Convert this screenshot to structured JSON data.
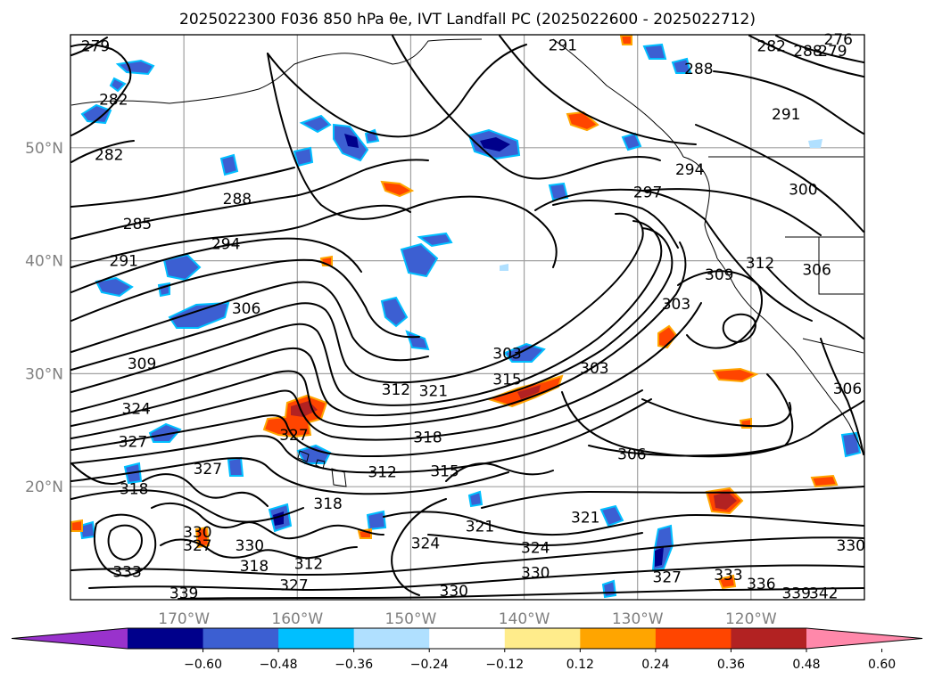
{
  "title": "2025022300 F036 850 hPa θe, IVT Landfall PC (2025022600 - 2025022712)",
  "map": {
    "lon_range": [
      -180,
      -110
    ],
    "lat_range": [
      10,
      60
    ],
    "lon_ticks": [
      -170,
      -160,
      -150,
      -140,
      -130,
      -120
    ],
    "lon_tick_labels": [
      "170°W",
      "160°W",
      "150°W",
      "140°W",
      "130°W",
      "120°W"
    ],
    "lat_ticks": [
      20,
      30,
      40,
      50
    ],
    "lat_tick_labels": [
      "20°N",
      "30°N",
      "40°N",
      "50°N"
    ],
    "grid": true,
    "contour_labels": [
      {
        "text": "279",
        "lon": -177.8,
        "lat": 59.0
      },
      {
        "text": "282",
        "lon": -176.2,
        "lat": 54.3
      },
      {
        "text": "282",
        "lon": -176.6,
        "lat": 49.4
      },
      {
        "text": "285",
        "lon": -174.1,
        "lat": 43.3
      },
      {
        "text": "288",
        "lon": -165.3,
        "lat": 45.5
      },
      {
        "text": "291",
        "lon": -175.3,
        "lat": 40.0
      },
      {
        "text": "294",
        "lon": -166.3,
        "lat": 41.5
      },
      {
        "text": "306",
        "lon": -164.5,
        "lat": 35.8
      },
      {
        "text": "309",
        "lon": -173.7,
        "lat": 30.9
      },
      {
        "text": "324",
        "lon": -174.2,
        "lat": 26.9
      },
      {
        "text": "327",
        "lon": -174.5,
        "lat": 24.0
      },
      {
        "text": "327",
        "lon": -167.9,
        "lat": 21.6
      },
      {
        "text": "327",
        "lon": -160.3,
        "lat": 24.6
      },
      {
        "text": "318",
        "lon": -174.4,
        "lat": 19.8
      },
      {
        "text": "330",
        "lon": -168.8,
        "lat": 16.0
      },
      {
        "text": "327",
        "lon": -168.8,
        "lat": 14.8
      },
      {
        "text": "330",
        "lon": -164.2,
        "lat": 14.8
      },
      {
        "text": "318",
        "lon": -163.8,
        "lat": 13.0
      },
      {
        "text": "312",
        "lon": -159.0,
        "lat": 13.2
      },
      {
        "text": "318",
        "lon": -157.3,
        "lat": 18.5
      },
      {
        "text": "312",
        "lon": -152.5,
        "lat": 21.3
      },
      {
        "text": "318",
        "lon": -148.5,
        "lat": 24.4
      },
      {
        "text": "315",
        "lon": -147.0,
        "lat": 21.4
      },
      {
        "text": "324",
        "lon": -148.7,
        "lat": 15.0
      },
      {
        "text": "333",
        "lon": -175.0,
        "lat": 12.5
      },
      {
        "text": "339",
        "lon": -170.0,
        "lat": 10.6
      },
      {
        "text": "327",
        "lon": -160.3,
        "lat": 11.3
      },
      {
        "text": "330",
        "lon": -146.2,
        "lat": 10.8
      },
      {
        "text": "321",
        "lon": -143.9,
        "lat": 16.5
      },
      {
        "text": "324",
        "lon": -139.0,
        "lat": 14.6
      },
      {
        "text": "330",
        "lon": -139.0,
        "lat": 12.4
      },
      {
        "text": "321",
        "lon": -134.6,
        "lat": 17.3
      },
      {
        "text": "327",
        "lon": -127.4,
        "lat": 12.0
      },
      {
        "text": "333",
        "lon": -122.0,
        "lat": 12.2
      },
      {
        "text": "336",
        "lon": -119.1,
        "lat": 11.4
      },
      {
        "text": "339",
        "lon": -116.0,
        "lat": 10.6
      },
      {
        "text": "342",
        "lon": -113.6,
        "lat": 10.6
      },
      {
        "text": "330",
        "lon": -111.2,
        "lat": 14.8
      },
      {
        "text": "306",
        "lon": -130.5,
        "lat": 22.9
      },
      {
        "text": "303",
        "lon": -133.8,
        "lat": 30.5
      },
      {
        "text": "303",
        "lon": -141.5,
        "lat": 31.8
      },
      {
        "text": "315",
        "lon": -141.5,
        "lat": 29.5
      },
      {
        "text": "312",
        "lon": -151.3,
        "lat": 28.6
      },
      {
        "text": "321",
        "lon": -148.0,
        "lat": 28.5
      },
      {
        "text": "303",
        "lon": -126.6,
        "lat": 36.2
      },
      {
        "text": "309",
        "lon": -122.8,
        "lat": 38.8
      },
      {
        "text": "312",
        "lon": -119.2,
        "lat": 39.8
      },
      {
        "text": "306",
        "lon": -114.2,
        "lat": 39.2
      },
      {
        "text": "306",
        "lon": -111.5,
        "lat": 28.7
      },
      {
        "text": "297",
        "lon": -129.1,
        "lat": 46.1
      },
      {
        "text": "294",
        "lon": -125.4,
        "lat": 48.1
      },
      {
        "text": "300",
        "lon": -115.4,
        "lat": 46.3
      },
      {
        "text": "291",
        "lon": -116.9,
        "lat": 53.0
      },
      {
        "text": "288",
        "lon": -124.6,
        "lat": 57.0
      },
      {
        "text": "291",
        "lon": -136.6,
        "lat": 59.1
      },
      {
        "text": "282",
        "lon": -118.2,
        "lat": 59.0
      },
      {
        "text": "288",
        "lon": -115.0,
        "lat": 58.6
      },
      {
        "text": "276",
        "lon": -112.3,
        "lat": 59.6
      },
      {
        "text": "279",
        "lon": -112.8,
        "lat": 58.6
      }
    ]
  },
  "colorbar": {
    "boundaries": [
      -0.72,
      -0.6,
      -0.48,
      -0.36,
      -0.24,
      -0.12,
      0.12,
      0.24,
      0.36,
      0.48,
      0.6,
      0.72
    ],
    "tick_labels": [
      "−0.60",
      "−0.48",
      "−0.36",
      "−0.24",
      "−0.12",
      "0.12",
      "0.24",
      "0.36",
      "0.48",
      "0.60"
    ],
    "colors": [
      "#9932cc",
      "#00008b",
      "#3c5fd2",
      "#00bfff",
      "#b0e0ff",
      "#ffffff",
      "#ffec8b",
      "#ffa500",
      "#ff4500",
      "#b22222",
      "#ff88aa"
    ],
    "extend": "both"
  },
  "colors": {
    "negative_fill": "#3c5fd2",
    "negative_core": "#00008b",
    "negative_edge": "#00bfff",
    "positive_fill": "#ff4500",
    "positive_core": "#b22222",
    "positive_edge": "#ffa500",
    "contour": "#000000",
    "grid": "#a0a0a0",
    "tick_text": "#808080"
  }
}
